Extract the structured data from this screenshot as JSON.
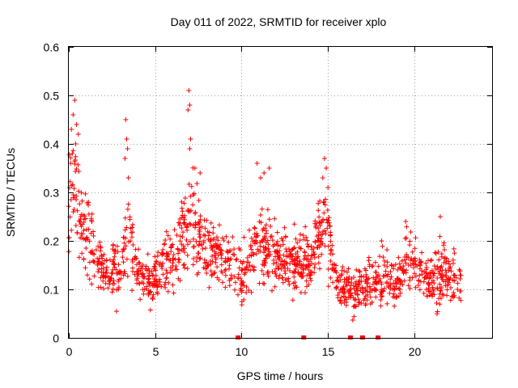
{
  "chart_data": {
    "type": "scatter",
    "title": "Day 011 of 2022, SRMTID for receiver xplo",
    "xlabel": "GPS time / hours",
    "ylabel": "SRMTID / TECUs",
    "xlim": [
      0,
      24.5
    ],
    "ylim": [
      0,
      0.6
    ],
    "xticks": [
      0,
      5,
      10,
      15,
      20
    ],
    "xtick_labels": [
      "0",
      "5",
      "10",
      "15",
      "20"
    ],
    "yticks": [
      0,
      0.1,
      0.2,
      0.3,
      0.4,
      0.5,
      0.6
    ],
    "ytick_labels": [
      "0",
      "0.1",
      "0.2",
      "0.3",
      "0.4",
      "0.5",
      "0.6"
    ],
    "grid": true,
    "marker": "+",
    "color": "#ff0000",
    "series": [
      {
        "name": "SRMTID",
        "envelope": [
          {
            "t": 0.0,
            "mean": 0.3,
            "spread": 0.09
          },
          {
            "t": 0.3,
            "mean": 0.32,
            "spread": 0.1
          },
          {
            "t": 0.8,
            "mean": 0.22,
            "spread": 0.08
          },
          {
            "t": 1.5,
            "mean": 0.18,
            "spread": 0.06
          },
          {
            "t": 2.0,
            "mean": 0.13,
            "spread": 0.05
          },
          {
            "t": 3.0,
            "mean": 0.14,
            "spread": 0.05
          },
          {
            "t": 3.4,
            "mean": 0.22,
            "spread": 0.09
          },
          {
            "t": 4.0,
            "mean": 0.13,
            "spread": 0.04
          },
          {
            "t": 5.0,
            "mean": 0.12,
            "spread": 0.05
          },
          {
            "t": 6.0,
            "mean": 0.17,
            "spread": 0.06
          },
          {
            "t": 7.0,
            "mean": 0.24,
            "spread": 0.09
          },
          {
            "t": 8.0,
            "mean": 0.18,
            "spread": 0.06
          },
          {
            "t": 9.0,
            "mean": 0.17,
            "spread": 0.06
          },
          {
            "t": 10.0,
            "mean": 0.12,
            "spread": 0.05
          },
          {
            "t": 11.0,
            "mean": 0.2,
            "spread": 0.07
          },
          {
            "t": 12.0,
            "mean": 0.17,
            "spread": 0.06
          },
          {
            "t": 13.0,
            "mean": 0.15,
            "spread": 0.05
          },
          {
            "t": 14.0,
            "mean": 0.16,
            "spread": 0.06
          },
          {
            "t": 14.8,
            "mean": 0.24,
            "spread": 0.07
          },
          {
            "t": 15.5,
            "mean": 0.11,
            "spread": 0.04
          },
          {
            "t": 16.0,
            "mean": 0.1,
            "spread": 0.04
          },
          {
            "t": 17.0,
            "mean": 0.1,
            "spread": 0.04
          },
          {
            "t": 18.0,
            "mean": 0.12,
            "spread": 0.05
          },
          {
            "t": 19.0,
            "mean": 0.11,
            "spread": 0.05
          },
          {
            "t": 19.5,
            "mean": 0.17,
            "spread": 0.05
          },
          {
            "t": 20.0,
            "mean": 0.14,
            "spread": 0.05
          },
          {
            "t": 21.0,
            "mean": 0.12,
            "spread": 0.05
          },
          {
            "t": 21.8,
            "mean": 0.14,
            "spread": 0.06
          },
          {
            "t": 22.7,
            "mean": 0.1,
            "spread": 0.04
          }
        ],
        "spikes": [
          {
            "x": 0.15,
            "y": 0.43
          },
          {
            "x": 0.25,
            "y": 0.46
          },
          {
            "x": 0.35,
            "y": 0.49
          },
          {
            "x": 0.45,
            "y": 0.44
          },
          {
            "x": 0.55,
            "y": 0.42
          },
          {
            "x": 0.2,
            "y": 0.38
          },
          {
            "x": 0.4,
            "y": 0.4
          },
          {
            "x": 0.1,
            "y": 0.36
          },
          {
            "x": 3.3,
            "y": 0.45
          },
          {
            "x": 3.35,
            "y": 0.41
          },
          {
            "x": 3.4,
            "y": 0.39
          },
          {
            "x": 3.25,
            "y": 0.37
          },
          {
            "x": 3.45,
            "y": 0.33
          },
          {
            "x": 6.95,
            "y": 0.51
          },
          {
            "x": 7.0,
            "y": 0.48
          },
          {
            "x": 6.9,
            "y": 0.47
          },
          {
            "x": 7.05,
            "y": 0.41
          },
          {
            "x": 7.0,
            "y": 0.39
          },
          {
            "x": 7.6,
            "y": 0.34
          },
          {
            "x": 7.3,
            "y": 0.35
          },
          {
            "x": 10.9,
            "y": 0.36
          },
          {
            "x": 11.3,
            "y": 0.34
          },
          {
            "x": 11.6,
            "y": 0.35
          },
          {
            "x": 11.1,
            "y": 0.33
          },
          {
            "x": 14.8,
            "y": 0.37
          },
          {
            "x": 14.9,
            "y": 0.35
          },
          {
            "x": 14.7,
            "y": 0.33
          },
          {
            "x": 15.0,
            "y": 0.31
          },
          {
            "x": 21.5,
            "y": 0.25
          },
          {
            "x": 19.5,
            "y": 0.24
          },
          {
            "x": 18.1,
            "y": 0.2
          }
        ],
        "zeros": [
          9.8,
          13.6,
          16.3,
          17.0,
          17.9
        ]
      }
    ]
  }
}
